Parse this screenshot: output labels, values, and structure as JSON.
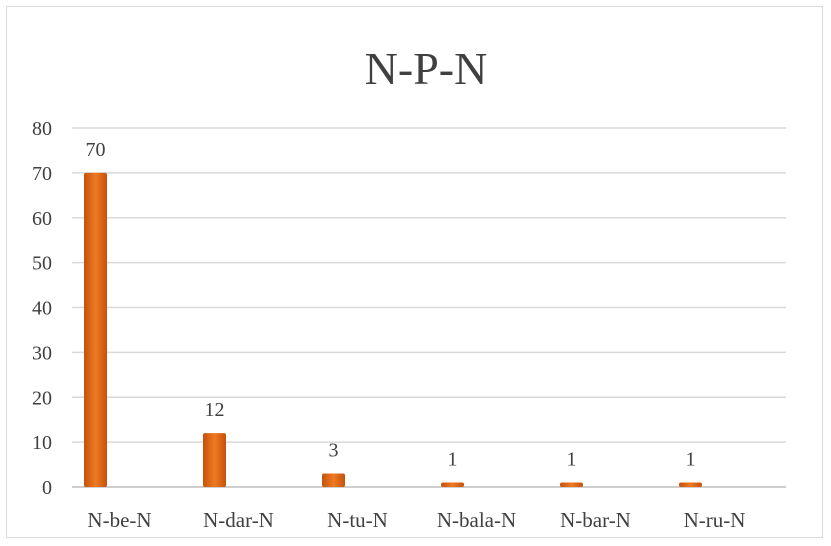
{
  "chart_data": {
    "type": "bar",
    "title": "N-P-N",
    "xlabel": "",
    "ylabel": "",
    "categories": [
      "N-be-N",
      "N-dar-N",
      "N-tu-N",
      "N-bala-N",
      "N-bar-N",
      "N-ru-N"
    ],
    "values": [
      70,
      12,
      3,
      1,
      1,
      1
    ],
    "data_labels": [
      "70",
      "12",
      "3",
      "1",
      "1",
      "1"
    ],
    "ylim": [
      0,
      80
    ],
    "yticks": [
      0,
      10,
      20,
      30,
      40,
      50,
      60,
      70,
      80
    ],
    "grid": true,
    "legend": "none",
    "colors": {
      "bar": "#e8701a",
      "bar_dark": "#c4520a",
      "grid": "#d9d9d9",
      "text": "#404040"
    }
  }
}
